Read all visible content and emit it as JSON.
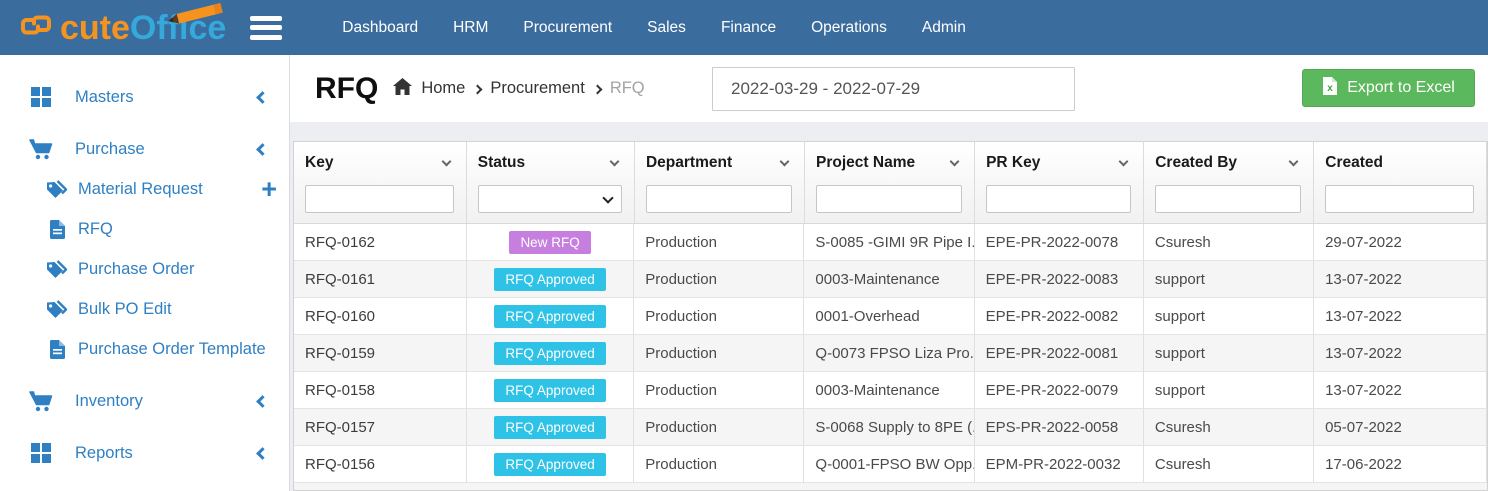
{
  "colors": {
    "navbar_bg": "#3a6d9e",
    "logo_cute": "#f6921e",
    "logo_office": "#35a8dc",
    "sidebar_link": "#2f80c3",
    "export_button_bg": "#5cb85c",
    "badge_new_rfq": "#c77fdf",
    "badge_rfq_approved": "#2ec3e6",
    "content_bg": "#eceef2",
    "row_alt_bg": "#f5f5f5"
  },
  "navbar": {
    "logo": {
      "text_cute": "cute",
      "text_office": "Office",
      "mark_icon": "chain-link-icon",
      "pencil_icon": "pencil-icon"
    },
    "menu_icon": "hamburger-menu-icon",
    "items": [
      {
        "label": "Dashboard"
      },
      {
        "label": "HRM"
      },
      {
        "label": "Procurement"
      },
      {
        "label": "Sales"
      },
      {
        "label": "Finance"
      },
      {
        "label": "Operations"
      },
      {
        "label": "Admin"
      }
    ]
  },
  "sidebar": {
    "items": [
      {
        "label": "Masters",
        "icon": "grid-icon",
        "collapsible": true
      },
      {
        "label": "Purchase",
        "icon": "cart-icon",
        "collapsible": true
      },
      {
        "label": "Material Request",
        "icon": "tags-icon",
        "has_plus": true
      },
      {
        "label": "RFQ",
        "icon": "file-icon"
      },
      {
        "label": "Purchase Order",
        "icon": "tags-icon"
      },
      {
        "label": "Bulk PO Edit",
        "icon": "tags-icon"
      },
      {
        "label": "Purchase Order Template",
        "icon": "file-icon"
      },
      {
        "label": "Inventory",
        "icon": "cart-icon",
        "collapsible": true
      },
      {
        "label": "Reports",
        "icon": "grid-icon",
        "collapsible": true
      }
    ],
    "plus_label": "+"
  },
  "page_header": {
    "title": "RFQ",
    "breadcrumb": {
      "home_icon": "home-icon",
      "items": [
        "Home",
        "Procurement",
        "RFQ"
      ]
    },
    "date_range_value": "2022-03-29 - 2022-07-29",
    "export_button": {
      "label": "Export to Excel",
      "icon": "excel-file-icon"
    }
  },
  "table": {
    "columns": [
      {
        "label": "Key",
        "filter": "input"
      },
      {
        "label": "Status",
        "filter": "select"
      },
      {
        "label": "Department",
        "filter": "input"
      },
      {
        "label": "Project Name",
        "filter": "input"
      },
      {
        "label": "PR Key",
        "filter": "input"
      },
      {
        "label": "Created By",
        "filter": "input"
      },
      {
        "label": "Created",
        "filter": "input"
      }
    ],
    "rows": [
      {
        "key": "RFQ-0162",
        "status": "New RFQ",
        "status_type": "new",
        "department": "Production",
        "project": "S-0085 -GIMI 9R Pipe I...",
        "pr_key": "EPE-PR-2022-0078",
        "created_by": "Csuresh",
        "created": "29-07-2022"
      },
      {
        "key": "RFQ-0161",
        "status": "RFQ Approved",
        "status_type": "approved",
        "department": "Production",
        "project": "0003-Maintenance",
        "pr_key": "EPE-PR-2022-0083",
        "created_by": "support",
        "created": "13-07-2022"
      },
      {
        "key": "RFQ-0160",
        "status": "RFQ Approved",
        "status_type": "approved",
        "department": "Production",
        "project": "0001-Overhead",
        "pr_key": "EPE-PR-2022-0082",
        "created_by": "support",
        "created": "13-07-2022"
      },
      {
        "key": "RFQ-0159",
        "status": "RFQ Approved",
        "status_type": "approved",
        "department": "Production",
        "project": "Q-0073 FPSO Liza Pro...",
        "pr_key": "EPE-PR-2022-0081",
        "created_by": "support",
        "created": "13-07-2022"
      },
      {
        "key": "RFQ-0158",
        "status": "RFQ Approved",
        "status_type": "approved",
        "department": "Production",
        "project": "0003-Maintenance",
        "pr_key": "EPE-PR-2022-0079",
        "created_by": "support",
        "created": "13-07-2022"
      },
      {
        "key": "RFQ-0157",
        "status": "RFQ Approved",
        "status_type": "approved",
        "department": "Production",
        "project": "S-0068 Supply to 8PE (...",
        "pr_key": "EPS-PR-2022-0058",
        "created_by": "Csuresh",
        "created": "05-07-2022"
      },
      {
        "key": "RFQ-0156",
        "status": "RFQ Approved",
        "status_type": "approved",
        "department": "Production",
        "project": "Q-0001-FPSO BW Opp...",
        "pr_key": "EPM-PR-2022-0032",
        "created_by": "Csuresh",
        "created": "17-06-2022"
      }
    ]
  }
}
